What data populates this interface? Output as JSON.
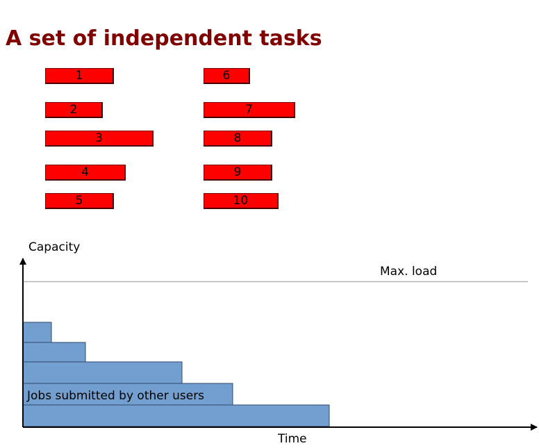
{
  "title": "A set of independent tasks",
  "tasks": [
    {
      "label": "1"
    },
    {
      "label": "2"
    },
    {
      "label": "3"
    },
    {
      "label": "4"
    },
    {
      "label": "5"
    },
    {
      "label": "6"
    },
    {
      "label": "7"
    },
    {
      "label": "8"
    },
    {
      "label": "9"
    },
    {
      "label": "10"
    }
  ],
  "chart": {
    "y_axis_label": "Capacity",
    "x_axis_label": "Time",
    "max_load_label": "Max. load",
    "other_jobs_label": "Jobs submitted by other users"
  },
  "colors": {
    "title": "#800000",
    "task_fill": "#ff0000",
    "job_fill": "#729fcf",
    "max_load_line": "#b3b3b3"
  }
}
